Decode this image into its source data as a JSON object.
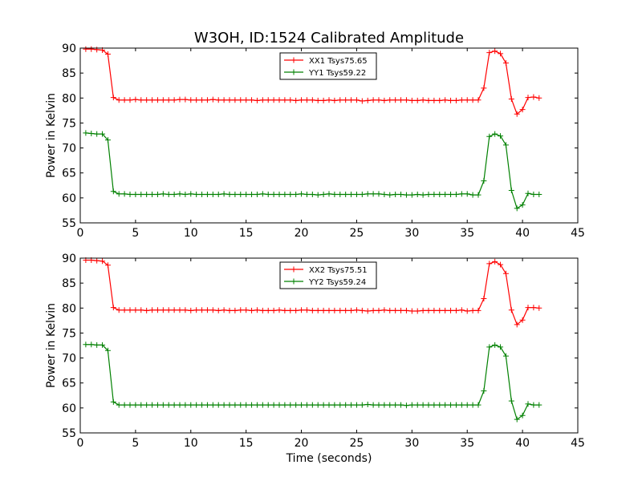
{
  "title": "W3OH, ID:1524 Calibrated Amplitude",
  "chart_data": [
    {
      "type": "line",
      "title": "W3OH, ID:1524 Calibrated Amplitude",
      "xlabel": "",
      "ylabel": "Power in Kelvin",
      "xlim": [
        0,
        45
      ],
      "ylim": [
        55,
        90
      ],
      "xticks": [
        0,
        5,
        10,
        15,
        20,
        25,
        30,
        35,
        40,
        45
      ],
      "yticks": [
        55,
        60,
        65,
        70,
        75,
        80,
        85,
        90
      ],
      "grid": false,
      "legend": "top-center",
      "marker": "+",
      "x": [
        0.5,
        1.0,
        1.5,
        2.0,
        2.5,
        3.0,
        3.5,
        4.0,
        4.5,
        5.0,
        5.5,
        6.0,
        6.5,
        7.0,
        7.5,
        8.0,
        8.5,
        9.0,
        9.5,
        10.0,
        10.5,
        11.0,
        11.5,
        12.0,
        12.5,
        13.0,
        13.5,
        14.0,
        14.5,
        15.0,
        15.5,
        16.0,
        16.5,
        17.0,
        17.5,
        18.0,
        18.5,
        19.0,
        19.5,
        20.0,
        20.5,
        21.0,
        21.5,
        22.0,
        22.5,
        23.0,
        23.5,
        24.0,
        24.5,
        25.0,
        25.5,
        26.0,
        26.5,
        27.0,
        27.5,
        28.0,
        28.5,
        29.0,
        29.5,
        30.0,
        30.5,
        31.0,
        31.5,
        32.0,
        32.5,
        33.0,
        33.5,
        34.0,
        34.5,
        35.0,
        35.5,
        36.0,
        36.5,
        37.0,
        37.5,
        38.0,
        38.5,
        39.0,
        39.5,
        40.0,
        40.5,
        41.0,
        41.5
      ],
      "series": [
        {
          "name": "XX1 Tsys75.65",
          "color": "#ff0000",
          "values": [
            89.8,
            89.8,
            89.7,
            89.6,
            88.8,
            80.1,
            79.6,
            79.6,
            79.6,
            79.7,
            79.6,
            79.6,
            79.6,
            79.6,
            79.6,
            79.6,
            79.6,
            79.7,
            79.7,
            79.6,
            79.6,
            79.6,
            79.6,
            79.7,
            79.6,
            79.6,
            79.6,
            79.6,
            79.6,
            79.6,
            79.6,
            79.5,
            79.6,
            79.6,
            79.6,
            79.6,
            79.6,
            79.6,
            79.5,
            79.6,
            79.6,
            79.6,
            79.5,
            79.5,
            79.6,
            79.5,
            79.6,
            79.6,
            79.6,
            79.6,
            79.4,
            79.5,
            79.6,
            79.6,
            79.5,
            79.6,
            79.6,
            79.6,
            79.6,
            79.5,
            79.5,
            79.6,
            79.5,
            79.5,
            79.5,
            79.6,
            79.5,
            79.5,
            79.6,
            79.6,
            79.6,
            79.6,
            82.0,
            89.1,
            89.4,
            88.9,
            87.0,
            79.8,
            76.8,
            77.7,
            80.1,
            80.2,
            80.0
          ]
        },
        {
          "name": "YY1 Tsys59.22",
          "color": "#008000",
          "values": [
            73.0,
            72.9,
            72.8,
            72.8,
            71.6,
            61.3,
            60.8,
            60.8,
            60.7,
            60.7,
            60.7,
            60.7,
            60.7,
            60.7,
            60.8,
            60.7,
            60.7,
            60.8,
            60.7,
            60.8,
            60.7,
            60.7,
            60.7,
            60.7,
            60.7,
            60.8,
            60.7,
            60.7,
            60.7,
            60.7,
            60.7,
            60.7,
            60.8,
            60.7,
            60.7,
            60.7,
            60.7,
            60.7,
            60.7,
            60.8,
            60.7,
            60.7,
            60.6,
            60.7,
            60.8,
            60.7,
            60.7,
            60.7,
            60.7,
            60.7,
            60.7,
            60.8,
            60.8,
            60.8,
            60.7,
            60.6,
            60.7,
            60.7,
            60.6,
            60.6,
            60.7,
            60.6,
            60.7,
            60.7,
            60.7,
            60.7,
            60.7,
            60.7,
            60.8,
            60.8,
            60.6,
            60.6,
            63.4,
            72.3,
            72.8,
            72.4,
            70.6,
            61.5,
            57.9,
            58.6,
            60.9,
            60.7,
            60.7
          ]
        }
      ]
    },
    {
      "type": "line",
      "xlabel": "Time (seconds)",
      "ylabel": "Power in Kelvin",
      "xlim": [
        0,
        45
      ],
      "ylim": [
        55,
        90
      ],
      "xticks": [
        0,
        5,
        10,
        15,
        20,
        25,
        30,
        35,
        40,
        45
      ],
      "yticks": [
        55,
        60,
        65,
        70,
        75,
        80,
        85,
        90
      ],
      "grid": false,
      "legend": "top-center",
      "marker": "+",
      "x": [
        0.5,
        1.0,
        1.5,
        2.0,
        2.5,
        3.0,
        3.5,
        4.0,
        4.5,
        5.0,
        5.5,
        6.0,
        6.5,
        7.0,
        7.5,
        8.0,
        8.5,
        9.0,
        9.5,
        10.0,
        10.5,
        11.0,
        11.5,
        12.0,
        12.5,
        13.0,
        13.5,
        14.0,
        14.5,
        15.0,
        15.5,
        16.0,
        16.5,
        17.0,
        17.5,
        18.0,
        18.5,
        19.0,
        19.5,
        20.0,
        20.5,
        21.0,
        21.5,
        22.0,
        22.5,
        23.0,
        23.5,
        24.0,
        24.5,
        25.0,
        25.5,
        26.0,
        26.5,
        27.0,
        27.5,
        28.0,
        28.5,
        29.0,
        29.5,
        30.0,
        30.5,
        31.0,
        31.5,
        32.0,
        32.5,
        33.0,
        33.5,
        34.0,
        34.5,
        35.0,
        35.5,
        36.0,
        36.5,
        37.0,
        37.5,
        38.0,
        38.5,
        39.0,
        39.5,
        40.0,
        40.5,
        41.0,
        41.5
      ],
      "series": [
        {
          "name": "XX2 Tsys75.51",
          "color": "#ff0000",
          "values": [
            89.6,
            89.6,
            89.5,
            89.4,
            88.6,
            80.1,
            79.6,
            79.6,
            79.6,
            79.6,
            79.6,
            79.5,
            79.6,
            79.6,
            79.6,
            79.6,
            79.6,
            79.6,
            79.6,
            79.5,
            79.6,
            79.6,
            79.6,
            79.6,
            79.5,
            79.6,
            79.5,
            79.5,
            79.6,
            79.6,
            79.5,
            79.6,
            79.5,
            79.5,
            79.5,
            79.6,
            79.5,
            79.5,
            79.5,
            79.6,
            79.6,
            79.5,
            79.5,
            79.5,
            79.5,
            79.5,
            79.5,
            79.5,
            79.5,
            79.6,
            79.5,
            79.4,
            79.5,
            79.5,
            79.6,
            79.5,
            79.5,
            79.5,
            79.5,
            79.4,
            79.4,
            79.5,
            79.5,
            79.5,
            79.5,
            79.5,
            79.5,
            79.5,
            79.6,
            79.4,
            79.5,
            79.5,
            81.9,
            88.9,
            89.3,
            88.7,
            86.9,
            79.6,
            76.7,
            77.6,
            80.1,
            80.1,
            80.0
          ]
        },
        {
          "name": "YY2 Tsys59.24",
          "color": "#008000",
          "values": [
            72.7,
            72.7,
            72.6,
            72.6,
            71.5,
            61.2,
            60.6,
            60.6,
            60.6,
            60.6,
            60.6,
            60.6,
            60.6,
            60.6,
            60.6,
            60.6,
            60.6,
            60.6,
            60.6,
            60.6,
            60.6,
            60.6,
            60.6,
            60.6,
            60.6,
            60.6,
            60.6,
            60.6,
            60.6,
            60.6,
            60.6,
            60.6,
            60.6,
            60.6,
            60.6,
            60.6,
            60.6,
            60.6,
            60.6,
            60.6,
            60.6,
            60.6,
            60.6,
            60.6,
            60.6,
            60.6,
            60.6,
            60.6,
            60.6,
            60.6,
            60.6,
            60.7,
            60.6,
            60.6,
            60.6,
            60.6,
            60.6,
            60.6,
            60.5,
            60.6,
            60.6,
            60.6,
            60.6,
            60.6,
            60.6,
            60.6,
            60.6,
            60.6,
            60.6,
            60.6,
            60.6,
            60.6,
            63.4,
            72.2,
            72.6,
            72.2,
            70.4,
            61.4,
            57.7,
            58.5,
            60.8,
            60.6,
            60.6
          ]
        }
      ]
    }
  ]
}
